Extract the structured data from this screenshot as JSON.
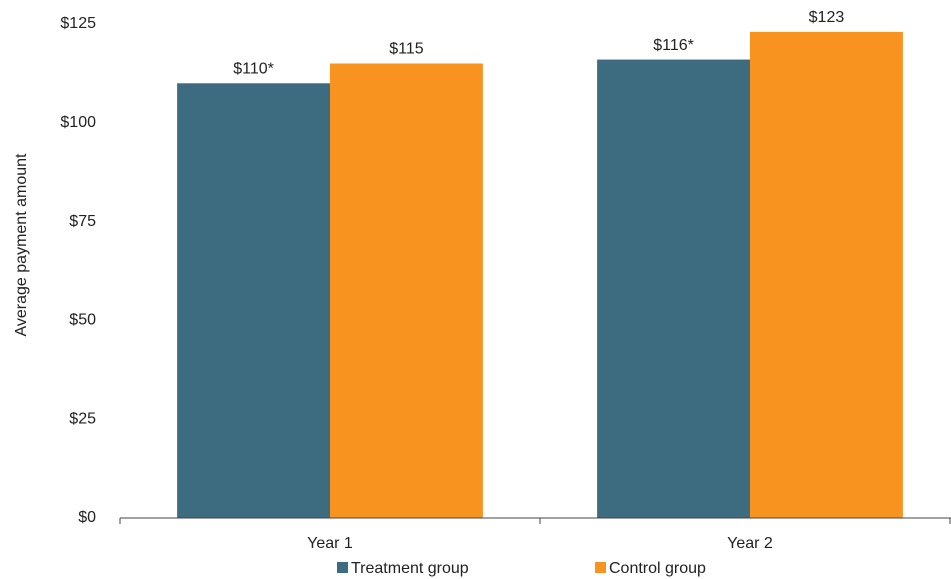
{
  "chart_data": {
    "type": "bar",
    "y_label": "Average payment amount",
    "categories": [
      "Year 1",
      "Year 2"
    ],
    "series": [
      {
        "name": "Treatment group",
        "color": "#3d6b80",
        "values": [
          110,
          116
        ],
        "value_labels": [
          "$110*",
          "$116*"
        ]
      },
      {
        "name": "Control group",
        "color": "#f7931e",
        "values": [
          115,
          123
        ],
        "value_labels": [
          "$115",
          "$123"
        ]
      }
    ],
    "ylim": [
      0,
      125
    ],
    "yticks": [
      {
        "value": 0,
        "label": "$0"
      },
      {
        "value": 25,
        "label": "$25"
      },
      {
        "value": 50,
        "label": "$50"
      },
      {
        "value": 75,
        "label": "$75"
      },
      {
        "value": 100,
        "label": "$100"
      },
      {
        "value": 125,
        "label": "$125"
      }
    ],
    "grid": false
  }
}
